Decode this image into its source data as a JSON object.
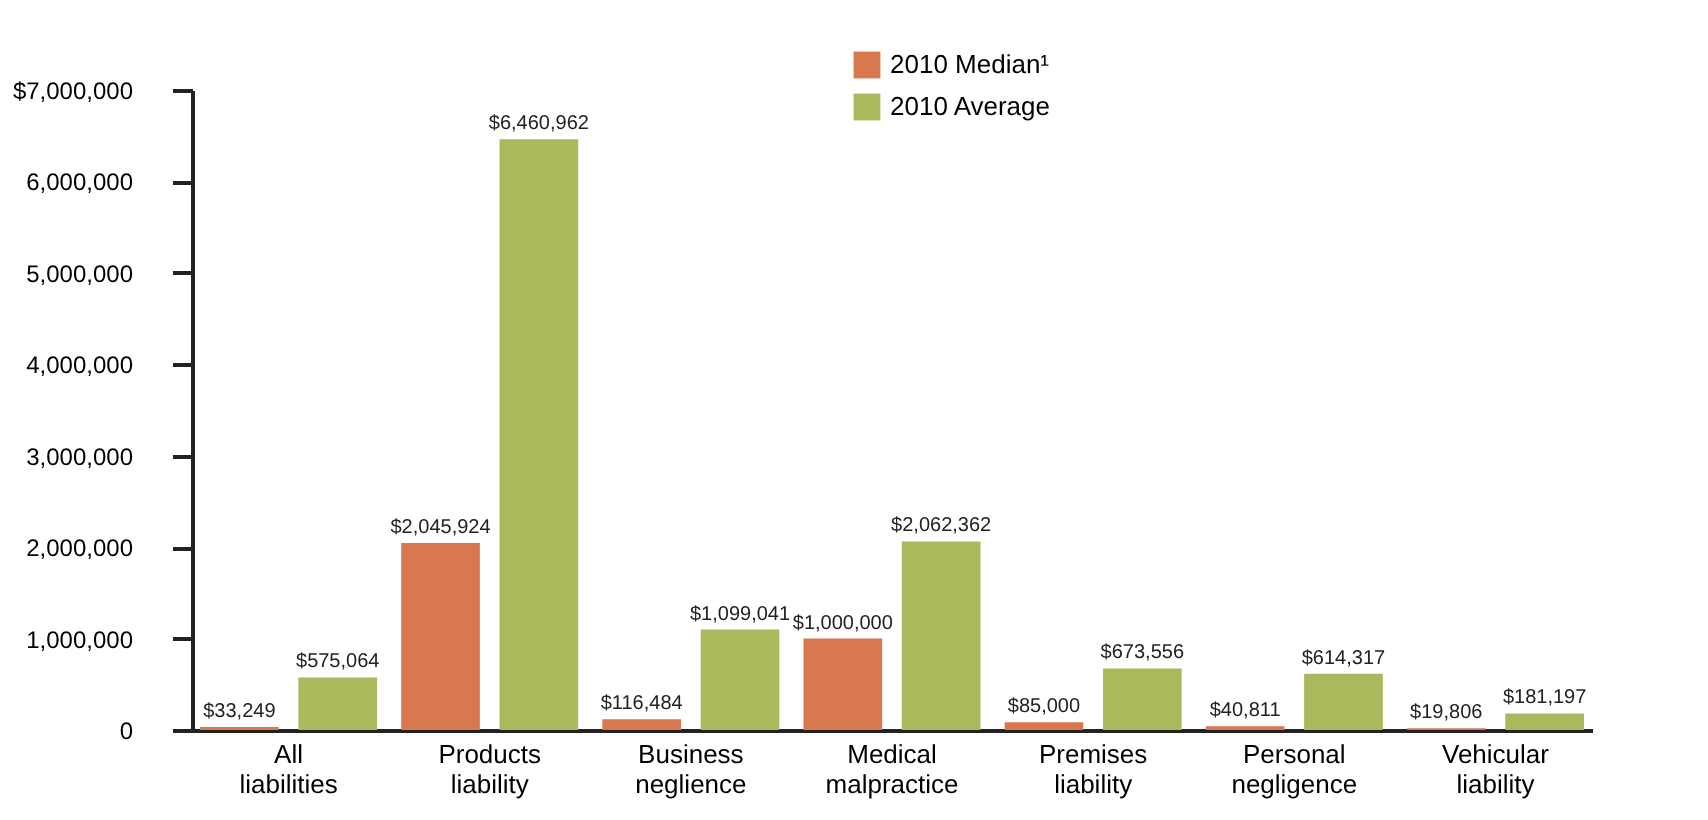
{
  "chart_data": {
    "type": "bar",
    "categories": [
      "All liabilities",
      "Products liability",
      "Business neglience",
      "Medical malpractice",
      "Premises liability",
      "Personal negligence",
      "Vehicular liability"
    ],
    "series": [
      {
        "name": "2010 Median¹",
        "color": "#d9774f",
        "values": [
          33249,
          2045924,
          116484,
          1000000,
          85000,
          40811,
          19806
        ],
        "value_labels": [
          "$33,249",
          "$2,045,924",
          "$116,484",
          "$1,000,000",
          "$85,000",
          "$40,811",
          "$19,806"
        ]
      },
      {
        "name": "2010 Average",
        "color": "#a9b95c",
        "values": [
          575064,
          6460962,
          1099041,
          2062362,
          673556,
          614317,
          181197
        ],
        "value_labels": [
          "$575,064",
          "$6,460,962",
          "$1,099,041",
          "$2,062,362",
          "$673,556",
          "$614,317",
          "$181,197"
        ]
      }
    ],
    "ylim": [
      0,
      7000000
    ],
    "yticks": [
      0,
      {
        "value": 1000000,
        "label": "1,000,000"
      },
      {
        "value": 2000000,
        "label": "2,000,000"
      },
      {
        "value": 3000000,
        "label": "3,000,000"
      },
      {
        "value": 4000000,
        "label": "4,000,000"
      },
      {
        "value": 5000000,
        "label": "5,000,000"
      },
      {
        "value": 6000000,
        "label": "6,000,000"
      },
      {
        "value": 7000000,
        "label": "$7,000,000"
      }
    ],
    "grid": false,
    "legend": "top"
  }
}
